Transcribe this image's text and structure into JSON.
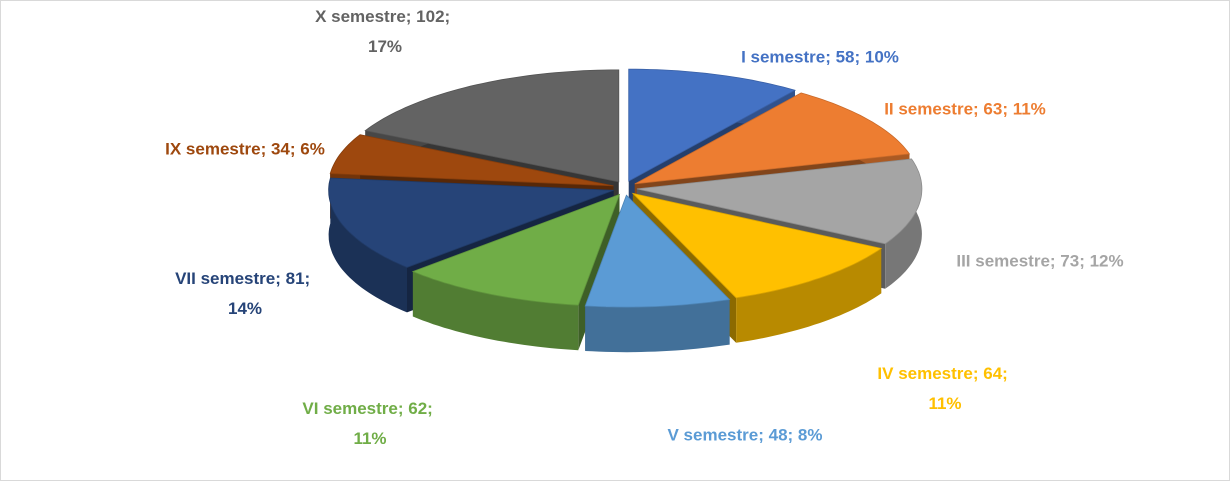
{
  "chart_data": {
    "type": "pie",
    "values": [
      58,
      63,
      73,
      64,
      48,
      62,
      81,
      34,
      102
    ],
    "value_labels": [
      "I semestre; 58; 10%",
      "II semestre; 63; 11%",
      "III semestre; 73; 12%",
      "IV semestre; 64; 11%",
      "V semestre; 48; 8%",
      "VI semestre; 62; 11%",
      "VII semestre; 81; 14%",
      "IX semestre; 34; 6%",
      "X semestre; 102; 17%"
    ],
    "colors": [
      "#4472c4",
      "#ed7d31",
      "#a5a5a5",
      "#ffc000",
      "#5b9bd5",
      "#70ad47",
      "#264478",
      "#9e480e",
      "#636363"
    ]
  }
}
